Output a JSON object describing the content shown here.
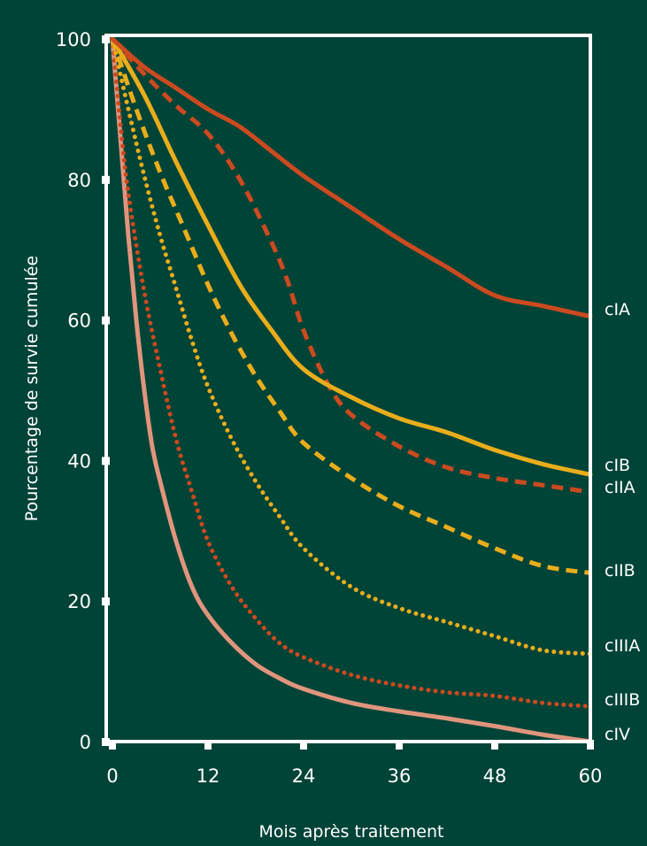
{
  "chart_data": {
    "type": "line",
    "title": "",
    "xlabel": "Mois après traitement",
    "ylabel": "Pourcentage de survie cumulée",
    "xlim": [
      0,
      60
    ],
    "ylim": [
      0,
      100
    ],
    "xticks": [
      0,
      12,
      24,
      36,
      48,
      60
    ],
    "yticks": [
      0,
      20,
      40,
      60,
      80,
      100
    ],
    "grid": false,
    "background_color": "#004337",
    "series": [
      {
        "name": "cIA",
        "color": "#cc4a1f",
        "style": "solid",
        "x": [
          0,
          4,
          8,
          12,
          16,
          20,
          24,
          30,
          36,
          42,
          48,
          54,
          60
        ],
        "y": [
          100,
          96,
          93,
          90,
          87.5,
          84,
          80.5,
          76,
          71.5,
          67.5,
          63.5,
          62,
          60.5
        ]
      },
      {
        "name": "cIB",
        "color": "#e9ad1b",
        "style": "solid",
        "x": [
          0,
          4,
          8,
          12,
          16,
          20,
          24,
          30,
          36,
          42,
          48,
          54,
          60
        ],
        "y": [
          100,
          92,
          82.5,
          73.5,
          65,
          58.5,
          53,
          49,
          46,
          44,
          41.5,
          39.5,
          38
        ]
      },
      {
        "name": "cIIA",
        "color": "#cc4a1f",
        "style": "dashed",
        "x": [
          0,
          4,
          8,
          12,
          16,
          20,
          22,
          24,
          27,
          30,
          36,
          42,
          48,
          54,
          60
        ],
        "y": [
          100,
          95,
          90.5,
          86.5,
          80,
          71,
          65.5,
          58.5,
          51,
          46.5,
          42,
          39,
          37.5,
          36.5,
          35.5
        ]
      },
      {
        "name": "cIIB",
        "color": "#e9ad1b",
        "style": "dashed",
        "x": [
          0,
          3,
          6,
          9,
          12,
          15,
          18,
          21,
          24,
          30,
          36,
          42,
          48,
          54,
          60
        ],
        "y": [
          100,
          90,
          81,
          73,
          65,
          58,
          52,
          47,
          42.5,
          37.5,
          33.5,
          30.5,
          27.5,
          25,
          24
        ]
      },
      {
        "name": "cIIIA",
        "color": "#e9ad1b",
        "style": "dotted",
        "x": [
          0,
          2,
          4,
          6,
          8,
          10,
          12,
          15,
          18,
          21,
          24,
          30,
          36,
          42,
          48,
          54,
          60
        ],
        "y": [
          100,
          90,
          80.5,
          72,
          64.5,
          57,
          50.5,
          43,
          37,
          32,
          27.5,
          22,
          19,
          17,
          15,
          13,
          12.5
        ]
      },
      {
        "name": "cIIIB",
        "color": "#cc4a1f",
        "style": "dotted",
        "x": [
          0,
          1,
          2,
          4,
          6,
          8,
          10,
          12,
          15,
          18,
          21,
          24,
          30,
          36,
          42,
          48,
          54,
          60
        ],
        "y": [
          100,
          88,
          78,
          64,
          53,
          43,
          35.5,
          28.5,
          22,
          17.5,
          14,
          12,
          9.5,
          8,
          7,
          6.5,
          5.5,
          5
        ]
      },
      {
        "name": "cIV",
        "color": "#e0957d",
        "style": "solid",
        "x": [
          0,
          1,
          2,
          3,
          4,
          5,
          6,
          8,
          10,
          12,
          15,
          18,
          21,
          24,
          30,
          36,
          42,
          48,
          54,
          60
        ],
        "y": [
          100,
          86,
          72,
          60,
          50,
          42,
          37,
          28.5,
          22,
          18,
          14,
          11,
          9,
          7.5,
          5.5,
          4.3,
          3.3,
          2.2,
          1,
          0
        ]
      }
    ]
  }
}
